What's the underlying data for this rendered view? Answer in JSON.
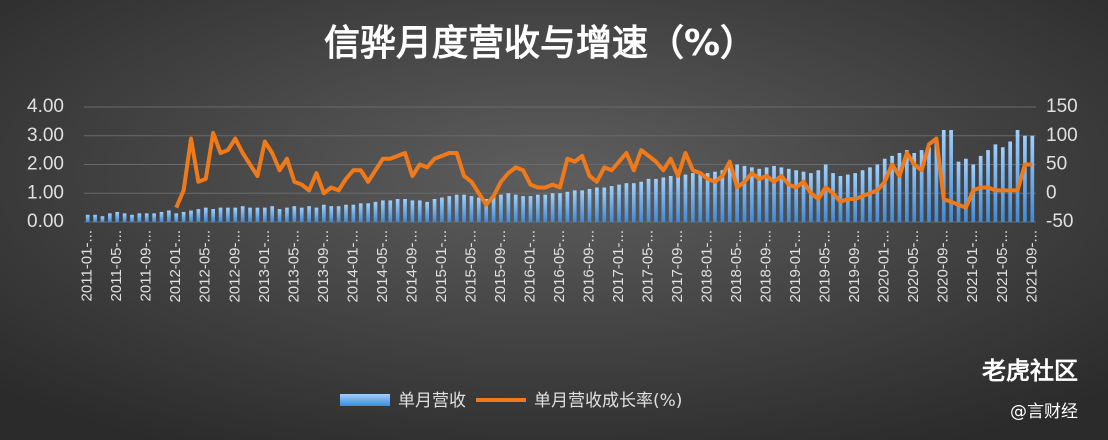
{
  "chart_data": {
    "type": "bar_line",
    "title": "信骅月度营收与增速（%）",
    "watermark": [
      "老虎社区",
      "@言财经"
    ],
    "categories": [
      "2011-01-...",
      null,
      null,
      null,
      "2011-05-...",
      null,
      null,
      null,
      "2011-09-...",
      null,
      null,
      null,
      "2012-01-...",
      null,
      null,
      null,
      "2012-05-...",
      null,
      null,
      null,
      "2012-09-...",
      null,
      null,
      null,
      "2013-01-...",
      null,
      null,
      null,
      "2013-05-...",
      null,
      null,
      null,
      "2013-09-...",
      null,
      null,
      null,
      "2014-01-...",
      null,
      null,
      null,
      "2014-05-...",
      null,
      null,
      null,
      "2014-09-...",
      null,
      null,
      null,
      "2015-01-...",
      null,
      null,
      null,
      "2015-05-...",
      null,
      null,
      null,
      "2015-09-...",
      null,
      null,
      null,
      "2016-01-...",
      null,
      null,
      null,
      "2016-05-...",
      null,
      null,
      null,
      "2016-09-...",
      null,
      null,
      null,
      "2017-01-...",
      null,
      null,
      null,
      "2017-05-...",
      null,
      null,
      null,
      "2017-09-...",
      null,
      null,
      null,
      "2018-01-...",
      null,
      null,
      null,
      "2018-05-...",
      null,
      null,
      null,
      "2018-09-...",
      null,
      null,
      null,
      "2019-01-...",
      null,
      null,
      null,
      "2019-05-...",
      null,
      null,
      null,
      "2019-09-...",
      null,
      null,
      null,
      "2020-01-...",
      null,
      null,
      null,
      "2020-05-...",
      null,
      null,
      null,
      "2020-09-...",
      null,
      null,
      null,
      "2021-01-...",
      null,
      null,
      null,
      "2021-05-...",
      null,
      null,
      null,
      "2021-09-..."
    ],
    "series": [
      {
        "name": "单月营收",
        "type": "bar",
        "color": "#6fb0f0",
        "values": [
          0.25,
          0.25,
          0.2,
          0.3,
          0.35,
          0.3,
          0.25,
          0.3,
          0.3,
          0.3,
          0.35,
          0.4,
          0.3,
          0.35,
          0.4,
          0.45,
          0.5,
          0.45,
          0.5,
          0.5,
          0.5,
          0.55,
          0.5,
          0.5,
          0.5,
          0.55,
          0.45,
          0.5,
          0.55,
          0.5,
          0.55,
          0.5,
          0.6,
          0.55,
          0.55,
          0.6,
          0.6,
          0.65,
          0.65,
          0.7,
          0.75,
          0.75,
          0.8,
          0.8,
          0.75,
          0.75,
          0.7,
          0.8,
          0.85,
          0.9,
          0.95,
          0.95,
          0.9,
          0.85,
          0.8,
          0.9,
          0.95,
          1.0,
          0.95,
          0.9,
          0.9,
          0.95,
          0.95,
          1.0,
          1.0,
          1.05,
          1.1,
          1.1,
          1.15,
          1.2,
          1.2,
          1.25,
          1.3,
          1.35,
          1.35,
          1.4,
          1.5,
          1.5,
          1.55,
          1.6,
          1.6,
          1.65,
          1.7,
          1.75,
          1.7,
          1.75,
          1.8,
          1.9,
          2.0,
          1.95,
          1.9,
          1.85,
          1.9,
          1.95,
          1.9,
          1.85,
          1.8,
          1.75,
          1.7,
          1.8,
          2.0,
          1.7,
          1.6,
          1.65,
          1.7,
          1.8,
          1.9,
          2.0,
          2.2,
          2.3,
          2.4,
          2.5,
          2.4,
          2.5,
          2.6,
          2.9,
          3.2,
          3.2,
          2.1,
          2.2,
          2.0,
          2.3,
          2.5,
          2.7,
          2.6,
          2.8,
          3.2,
          3.0,
          3.0
        ]
      },
      {
        "name": "单月营收成长率(%)",
        "type": "line",
        "axis": "y2",
        "color": "#f07a1a",
        "values": [
          null,
          null,
          null,
          null,
          null,
          null,
          null,
          null,
          null,
          null,
          null,
          null,
          -25,
          5,
          95,
          20,
          25,
          105,
          70,
          75,
          95,
          70,
          50,
          30,
          90,
          70,
          40,
          60,
          20,
          15,
          5,
          35,
          0,
          10,
          5,
          25,
          40,
          40,
          20,
          40,
          60,
          60,
          65,
          70,
          30,
          50,
          45,
          60,
          65,
          70,
          70,
          30,
          20,
          0,
          -20,
          -5,
          20,
          35,
          45,
          40,
          15,
          10,
          10,
          15,
          10,
          60,
          55,
          65,
          30,
          20,
          45,
          40,
          55,
          70,
          40,
          75,
          65,
          55,
          40,
          60,
          30,
          70,
          40,
          35,
          25,
          20,
          30,
          55,
          10,
          20,
          35,
          25,
          30,
          20,
          30,
          15,
          10,
          20,
          0,
          -10,
          10,
          0,
          -15,
          -10,
          -10,
          -5,
          0,
          5,
          20,
          50,
          30,
          70,
          50,
          40,
          85,
          95,
          -10,
          -15,
          -20,
          -25,
          5,
          10,
          10,
          5,
          5,
          5,
          5,
          50,
          50
        ]
      }
    ],
    "ylim": [
      0,
      4
    ],
    "yticks": [
      {
        "value": 0,
        "label": "0.00"
      },
      {
        "value": 1,
        "label": "1.00"
      },
      {
        "value": 2,
        "label": "2.00"
      },
      {
        "value": 3,
        "label": "3.00"
      },
      {
        "value": 4,
        "label": "4.00"
      }
    ],
    "y2lim": [
      -50,
      150
    ],
    "y2ticks": [
      -50,
      0,
      50,
      100,
      150
    ],
    "grid": true
  }
}
